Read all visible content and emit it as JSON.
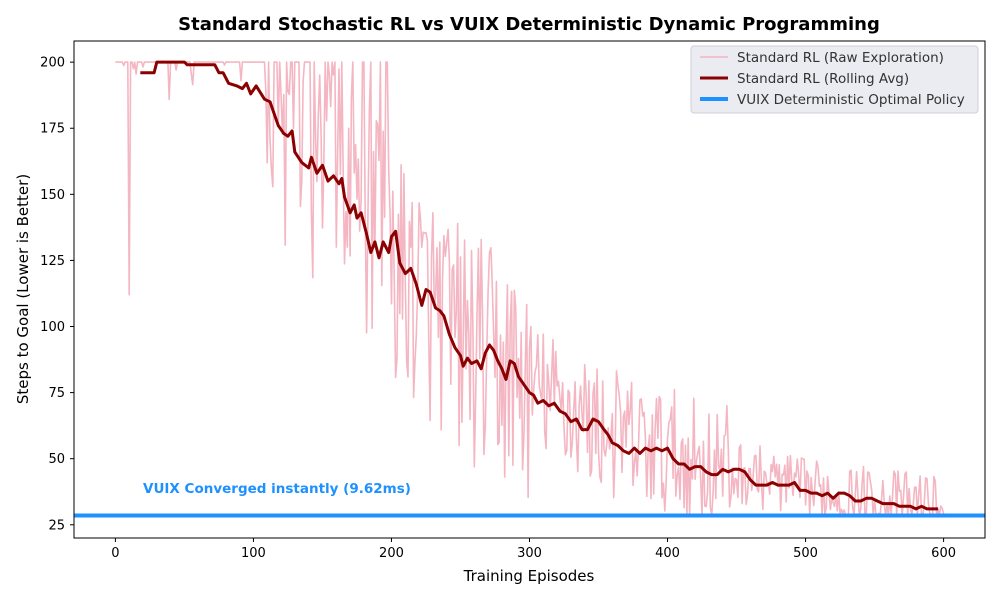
{
  "chart_data": {
    "type": "line",
    "title": "Standard Stochastic RL vs VUIX Deterministic Dynamic Programming",
    "xlabel": "Training Episodes",
    "ylabel": "Steps to Goal (Lower is Better)",
    "xlim": [
      -30,
      630
    ],
    "ylim": [
      20,
      208
    ],
    "xticks": [
      "0",
      "100",
      "200",
      "300",
      "400",
      "500",
      "600"
    ],
    "yticks": [
      "25",
      "50",
      "75",
      "100",
      "125",
      "150",
      "175",
      "200"
    ],
    "grid": false,
    "legend_position": "top-right",
    "series": [
      {
        "name": "Standard RL (Raw Exploration)",
        "style": "raw",
        "color": "#f4b6c2",
        "points_profile": [
          [
            0,
            200
          ],
          [
            80,
            198
          ],
          [
            120,
            175
          ],
          [
            150,
            160
          ],
          [
            175,
            145
          ],
          [
            200,
            125
          ],
          [
            225,
            110
          ],
          [
            250,
            95
          ],
          [
            275,
            85
          ],
          [
            300,
            78
          ],
          [
            325,
            70
          ],
          [
            350,
            62
          ],
          [
            375,
            56
          ],
          [
            400,
            52
          ],
          [
            425,
            48
          ],
          [
            450,
            45
          ],
          [
            475,
            42
          ],
          [
            500,
            38
          ],
          [
            550,
            35
          ],
          [
            600,
            32
          ]
        ]
      },
      {
        "name": "Standard RL (Rolling Avg)",
        "style": "avg",
        "color": "#8b0000",
        "points": [
          [
            18,
            196
          ],
          [
            28,
            196
          ],
          [
            30,
            200
          ],
          [
            50,
            200
          ],
          [
            52,
            199
          ],
          [
            72,
            199
          ],
          [
            75,
            196
          ],
          [
            78,
            196
          ],
          [
            82,
            192
          ],
          [
            88,
            191
          ],
          [
            92,
            190
          ],
          [
            95,
            192
          ],
          [
            98,
            188
          ],
          [
            102,
            191
          ],
          [
            108,
            186
          ],
          [
            112,
            185
          ],
          [
            118,
            176
          ],
          [
            122,
            173
          ],
          [
            125,
            172
          ],
          [
            128,
            174
          ],
          [
            130,
            166
          ],
          [
            135,
            162
          ],
          [
            140,
            160
          ],
          [
            142,
            164
          ],
          [
            146,
            158
          ],
          [
            150,
            161
          ],
          [
            154,
            155
          ],
          [
            158,
            157
          ],
          [
            162,
            154
          ],
          [
            164,
            156
          ],
          [
            166,
            149
          ],
          [
            170,
            143
          ],
          [
            173,
            146
          ],
          [
            175,
            141
          ],
          [
            178,
            143
          ],
          [
            182,
            135
          ],
          [
            185,
            128
          ],
          [
            188,
            132
          ],
          [
            191,
            126
          ],
          [
            194,
            132
          ],
          [
            198,
            128
          ],
          [
            200,
            134
          ],
          [
            203,
            136
          ],
          [
            206,
            124
          ],
          [
            210,
            120
          ],
          [
            214,
            122
          ],
          [
            218,
            116
          ],
          [
            222,
            108
          ],
          [
            225,
            114
          ],
          [
            228,
            113
          ],
          [
            232,
            107
          ],
          [
            235,
            106
          ],
          [
            238,
            104
          ],
          [
            242,
            97
          ],
          [
            246,
            92
          ],
          [
            250,
            89
          ],
          [
            252,
            85
          ],
          [
            255,
            88
          ],
          [
            258,
            86
          ],
          [
            262,
            87
          ],
          [
            265,
            84
          ],
          [
            268,
            90
          ],
          [
            271,
            93
          ],
          [
            274,
            91
          ],
          [
            277,
            87
          ],
          [
            280,
            84
          ],
          [
            283,
            80
          ],
          [
            286,
            87
          ],
          [
            289,
            86
          ],
          [
            292,
            81
          ],
          [
            296,
            78
          ],
          [
            300,
            75
          ],
          [
            303,
            74
          ],
          [
            306,
            71
          ],
          [
            310,
            72
          ],
          [
            314,
            70
          ],
          [
            318,
            71
          ],
          [
            322,
            68
          ],
          [
            326,
            67
          ],
          [
            330,
            64
          ],
          [
            334,
            65
          ],
          [
            338,
            61
          ],
          [
            342,
            61
          ],
          [
            346,
            65
          ],
          [
            350,
            64
          ],
          [
            354,
            61
          ],
          [
            357,
            59
          ],
          [
            360,
            56
          ],
          [
            364,
            55
          ],
          [
            368,
            53
          ],
          [
            372,
            52
          ],
          [
            376,
            54
          ],
          [
            380,
            52
          ],
          [
            384,
            54
          ],
          [
            388,
            53
          ],
          [
            392,
            54
          ],
          [
            396,
            53
          ],
          [
            400,
            54
          ],
          [
            404,
            50
          ],
          [
            408,
            48
          ],
          [
            412,
            48
          ],
          [
            416,
            46
          ],
          [
            420,
            47
          ],
          [
            424,
            47
          ],
          [
            428,
            45
          ],
          [
            432,
            44
          ],
          [
            436,
            44
          ],
          [
            440,
            46
          ],
          [
            444,
            45
          ],
          [
            448,
            46
          ],
          [
            452,
            46
          ],
          [
            456,
            45
          ],
          [
            460,
            42
          ],
          [
            464,
            40
          ],
          [
            468,
            40
          ],
          [
            472,
            40
          ],
          [
            476,
            41
          ],
          [
            480,
            40
          ],
          [
            484,
            40
          ],
          [
            488,
            40
          ],
          [
            492,
            41
          ],
          [
            496,
            38
          ],
          [
            500,
            38
          ],
          [
            504,
            37
          ],
          [
            508,
            37
          ],
          [
            512,
            36
          ],
          [
            516,
            37
          ],
          [
            520,
            35
          ],
          [
            524,
            37
          ],
          [
            528,
            37
          ],
          [
            532,
            36
          ],
          [
            536,
            34
          ],
          [
            540,
            34
          ],
          [
            544,
            35
          ],
          [
            548,
            35
          ],
          [
            552,
            34
          ],
          [
            556,
            33
          ],
          [
            560,
            33
          ],
          [
            564,
            33
          ],
          [
            568,
            32
          ],
          [
            572,
            32
          ],
          [
            576,
            32
          ],
          [
            580,
            31
          ],
          [
            584,
            32
          ],
          [
            588,
            31
          ],
          [
            592,
            31
          ],
          [
            596,
            31
          ]
        ]
      },
      {
        "name": "VUIX Deterministic Optimal Policy",
        "style": "hline",
        "color": "#1e90ff",
        "value": 28.5
      }
    ],
    "annotations": [
      {
        "text": "VUIX Converged instantly (9.62ms)",
        "x": 20,
        "y": 37,
        "color": "#1e90ff"
      }
    ]
  }
}
